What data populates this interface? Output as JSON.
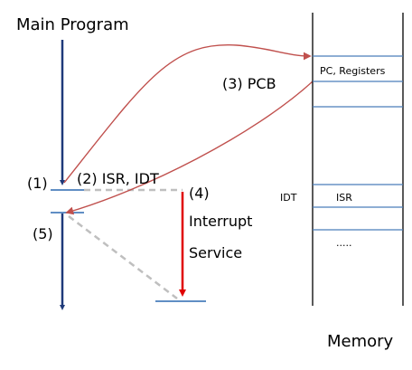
{
  "labels": {
    "main_program": "Main Program",
    "step1": "(1)",
    "step2": "(2) ISR, IDT",
    "step3": "(3) PCB",
    "step4": "(4)",
    "step5": "(5)",
    "interrupt": "Interrupt",
    "service": "Service",
    "memory": "Memory"
  },
  "memory": {
    "pc_registers": "PC, Registers",
    "idt": "IDT",
    "isr": "ISR",
    "ellipsis": "....."
  },
  "colors": {
    "main_line": "#1f3a7a",
    "slot_line": "#4a7ebb",
    "context_arrow": "#c0504d",
    "interrupt_arrow": "#e00000",
    "dashed": "#bfbfbf",
    "memory_border": "#000000"
  }
}
